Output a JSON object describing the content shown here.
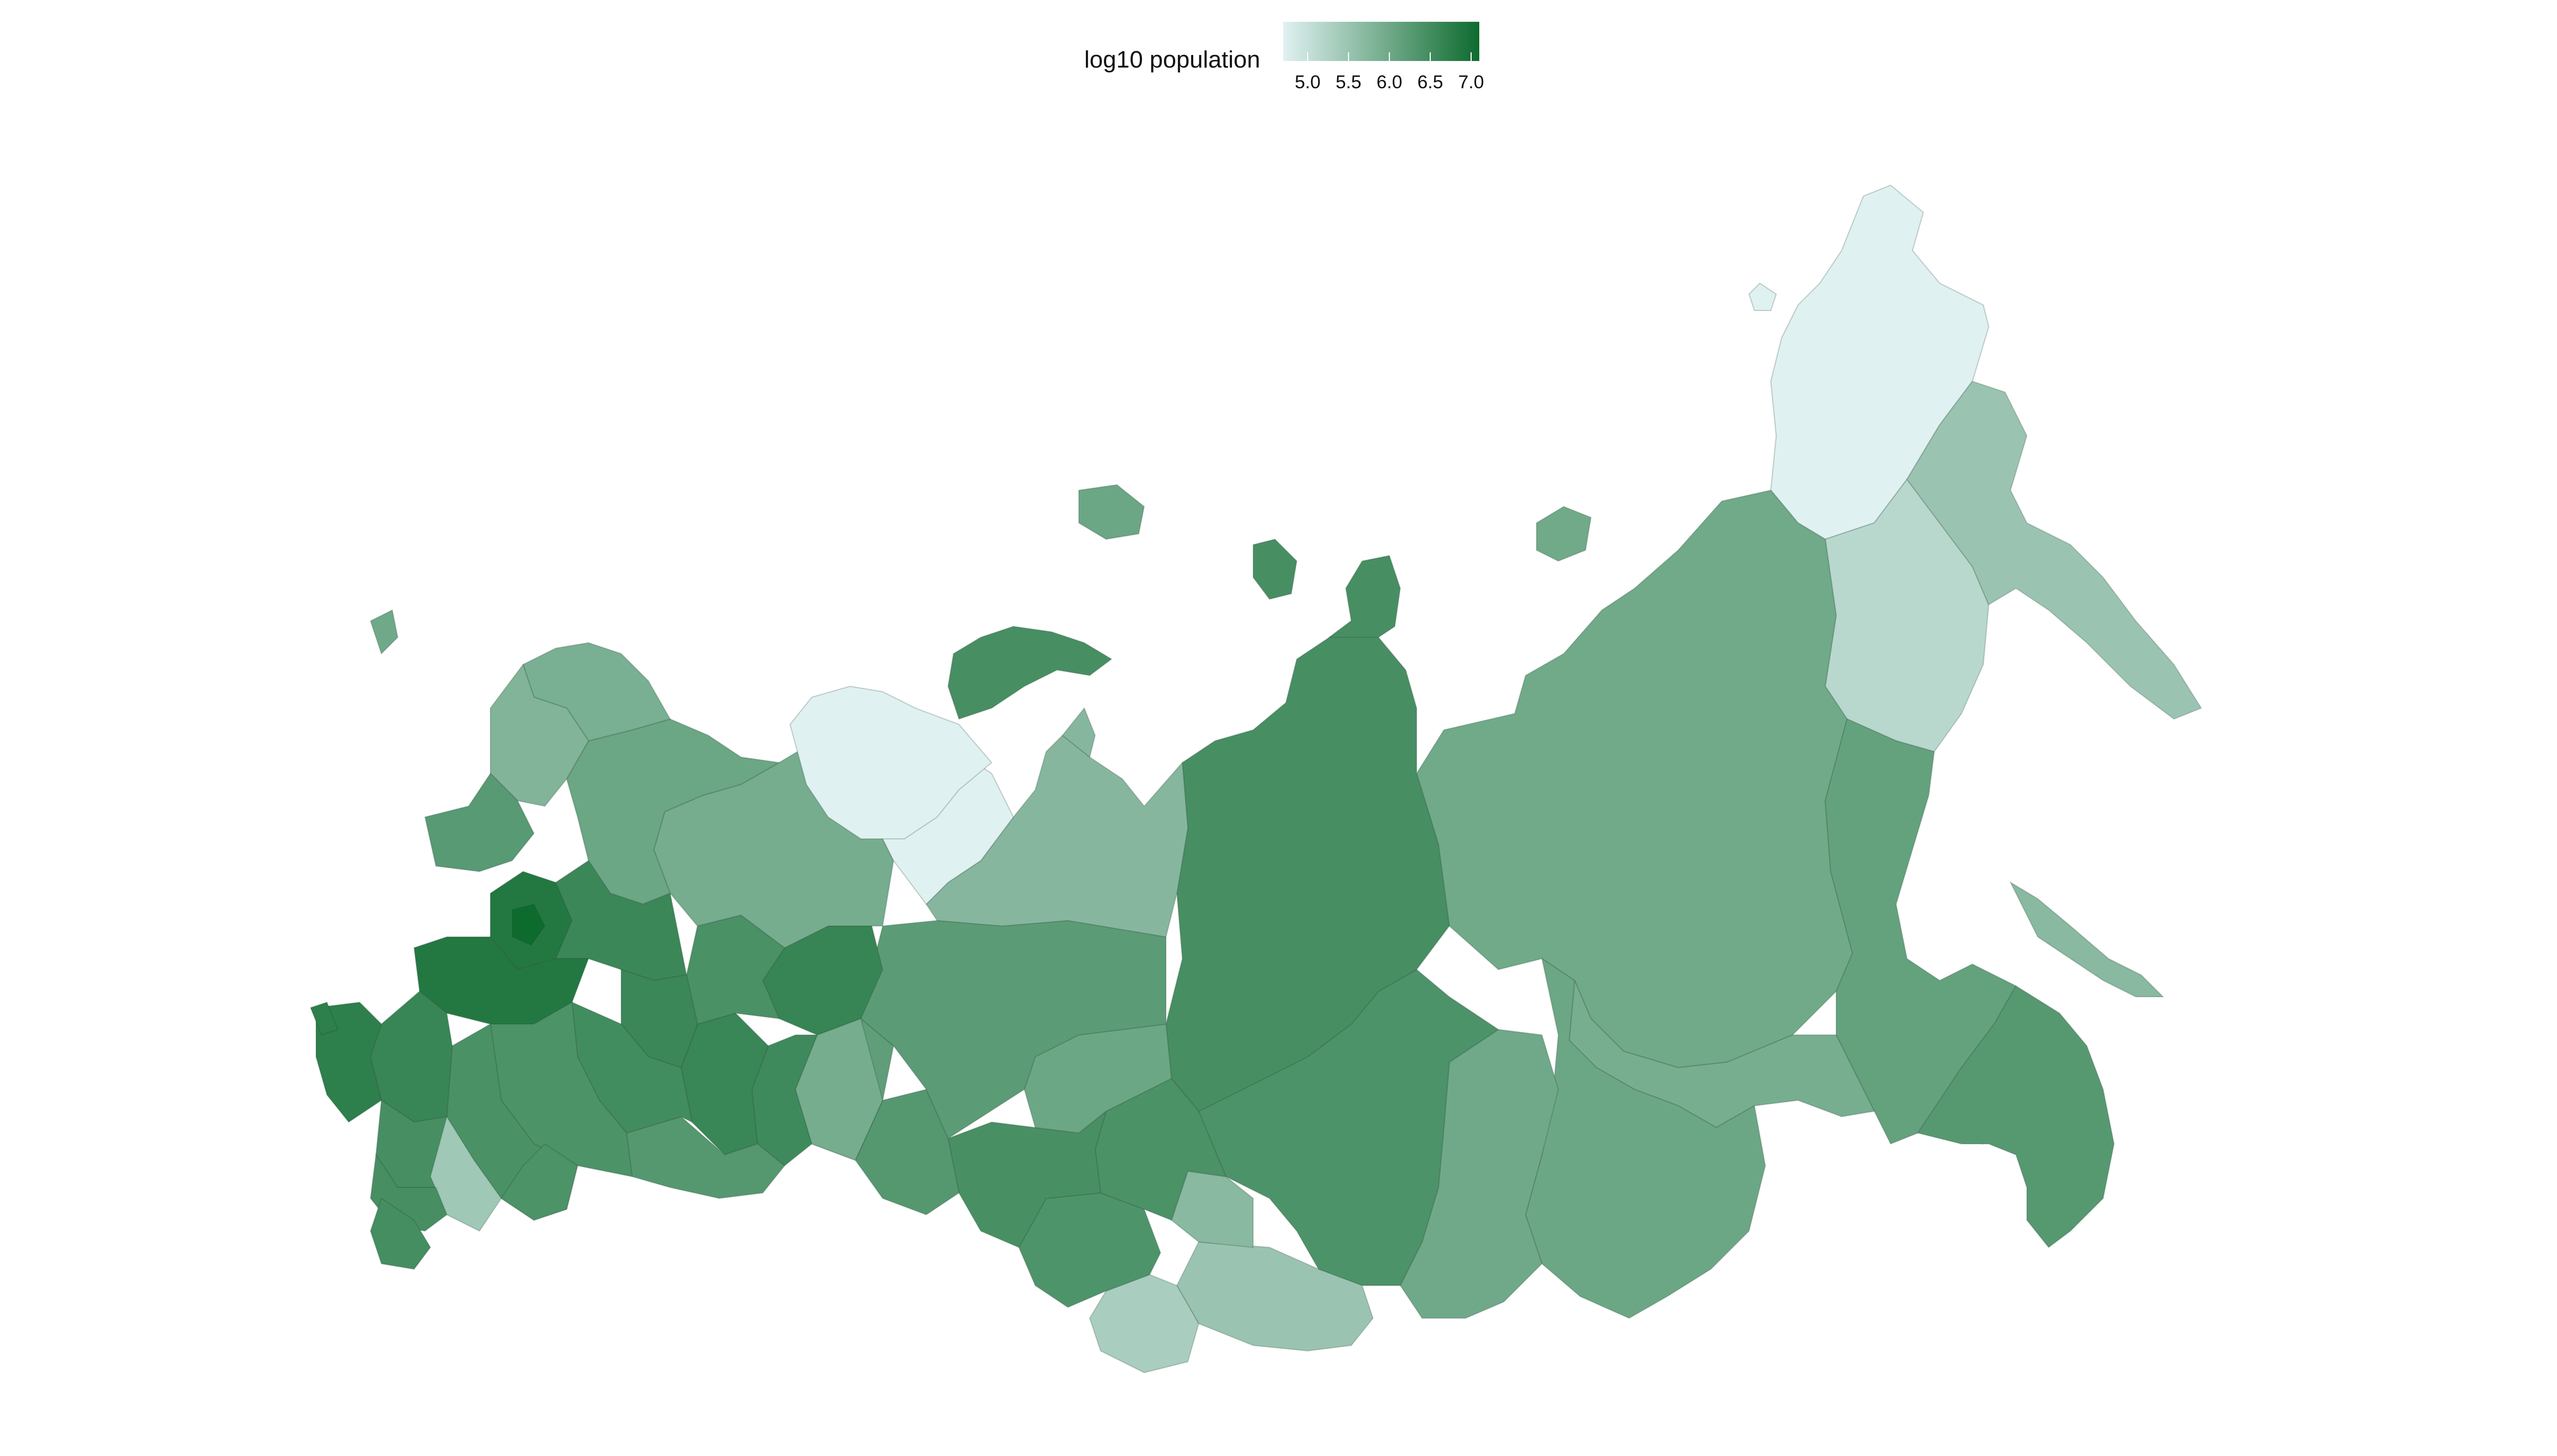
{
  "legend": {
    "title": "log10 population",
    "min": 4.7,
    "max": 7.1,
    "ticks": [
      "5.0",
      "5.5",
      "6.0",
      "6.5",
      "7.0"
    ],
    "tick_values": [
      5.0,
      5.5,
      6.0,
      6.5,
      7.0
    ],
    "color_low": "#e0f1f2",
    "color_high": "#0e6b2e"
  },
  "map": {
    "type": "choropleth",
    "variable": "log10 population",
    "regions": [
      {
        "id": "chukotka",
        "value": 4.7
      },
      {
        "id": "magadan",
        "value": 5.15
      },
      {
        "id": "kamchatka",
        "value": 5.5
      },
      {
        "id": "sakha-yakutia",
        "value": 5.98
      },
      {
        "id": "khabarovsk",
        "value": 6.12
      },
      {
        "id": "primorye",
        "value": 6.28
      },
      {
        "id": "jewish-ao",
        "value": 5.2
      },
      {
        "id": "amur",
        "value": 5.9
      },
      {
        "id": "sakhalin",
        "value": 5.7
      },
      {
        "id": "zabaykalsky",
        "value": 6.03
      },
      {
        "id": "buryatia",
        "value": 5.99
      },
      {
        "id": "irkutsk",
        "value": 6.38
      },
      {
        "id": "krasnoyarsk",
        "value": 6.45
      },
      {
        "id": "tuva",
        "value": 5.5
      },
      {
        "id": "khakassia",
        "value": 5.7
      },
      {
        "id": "altai-republic",
        "value": 5.33
      },
      {
        "id": "altai-krai",
        "value": 6.37
      },
      {
        "id": "kemerovo",
        "value": 6.4
      },
      {
        "id": "novosibirsk",
        "value": 6.44
      },
      {
        "id": "tomsk",
        "value": 6.03
      },
      {
        "id": "omsk",
        "value": 6.29
      },
      {
        "id": "tyumen",
        "value": 6.18
      },
      {
        "id": "khanty-mansi",
        "value": 6.22
      },
      {
        "id": "yamalo-nenets",
        "value": 5.73
      },
      {
        "id": "sverdlovsk",
        "value": 6.63
      },
      {
        "id": "chelyabinsk",
        "value": 6.54
      },
      {
        "id": "kurgan",
        "value": 5.92
      },
      {
        "id": "bashkortostan",
        "value": 6.61
      },
      {
        "id": "orenburg",
        "value": 6.29
      },
      {
        "id": "perm",
        "value": 6.42
      },
      {
        "id": "komi",
        "value": 5.92
      },
      {
        "id": "nenets",
        "value": 4.65
      },
      {
        "id": "arkhangelsk",
        "value": 6.04
      },
      {
        "id": "murmansk",
        "value": 5.88
      },
      {
        "id": "karelia",
        "value": 5.79
      },
      {
        "id": "leningrad",
        "value": 6.25
      },
      {
        "id": "moscow-oblast",
        "value": 6.86
      },
      {
        "id": "moscow-city",
        "value": 7.1
      },
      {
        "id": "krasnodar",
        "value": 6.75
      },
      {
        "id": "rostov",
        "value": 6.62
      },
      {
        "id": "volgograd",
        "value": 6.41
      },
      {
        "id": "saratov",
        "value": 6.39
      },
      {
        "id": "samara",
        "value": 6.5
      },
      {
        "id": "tatarstan",
        "value": 6.59
      },
      {
        "id": "dagestan",
        "value": 6.48
      },
      {
        "id": "kalmykia",
        "value": 5.44
      },
      {
        "id": "stavropol",
        "value": 6.45
      },
      {
        "id": "kaliningrad",
        "value": 5.99
      },
      {
        "id": "novaya-zemlya",
        "value": 4.7
      }
    ]
  }
}
